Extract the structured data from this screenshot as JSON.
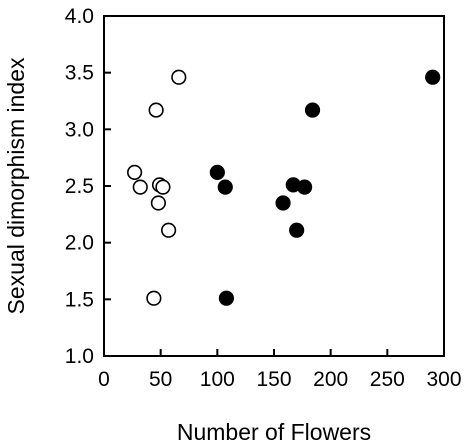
{
  "chart_data": {
    "type": "scatter",
    "title": "",
    "xlabel": "Number of Flowers",
    "ylabel": "Sexual dimorphism index",
    "xlim": [
      0,
      300
    ],
    "ylim": [
      1.0,
      4.0
    ],
    "xticks": [
      "0",
      "50",
      "100",
      "150",
      "200",
      "250",
      "300"
    ],
    "yticks": [
      "1.0",
      "1.5",
      "2.0",
      "2.5",
      "3.0",
      "3.5",
      "4.0"
    ],
    "grid": false,
    "legend": "none",
    "series": [
      {
        "marker": "open-circle",
        "color": "#000000",
        "fill": "#ffffff",
        "points": [
          {
            "x": 27,
            "y": 2.62
          },
          {
            "x": 32,
            "y": 2.49
          },
          {
            "x": 44,
            "y": 1.51
          },
          {
            "x": 46,
            "y": 3.17
          },
          {
            "x": 48,
            "y": 2.35
          },
          {
            "x": 49,
            "y": 2.51
          },
          {
            "x": 52,
            "y": 2.49
          },
          {
            "x": 57,
            "y": 2.11
          },
          {
            "x": 66,
            "y": 3.46
          }
        ]
      },
      {
        "marker": "filled-circle",
        "color": "#000000",
        "fill": "#000000",
        "points": [
          {
            "x": 100,
            "y": 2.62
          },
          {
            "x": 107,
            "y": 2.49
          },
          {
            "x": 108,
            "y": 1.51
          },
          {
            "x": 158,
            "y": 2.35
          },
          {
            "x": 167,
            "y": 2.51
          },
          {
            "x": 170,
            "y": 2.11
          },
          {
            "x": 177,
            "y": 2.49
          },
          {
            "x": 184,
            "y": 3.17
          },
          {
            "x": 290,
            "y": 3.46
          }
        ]
      }
    ]
  }
}
